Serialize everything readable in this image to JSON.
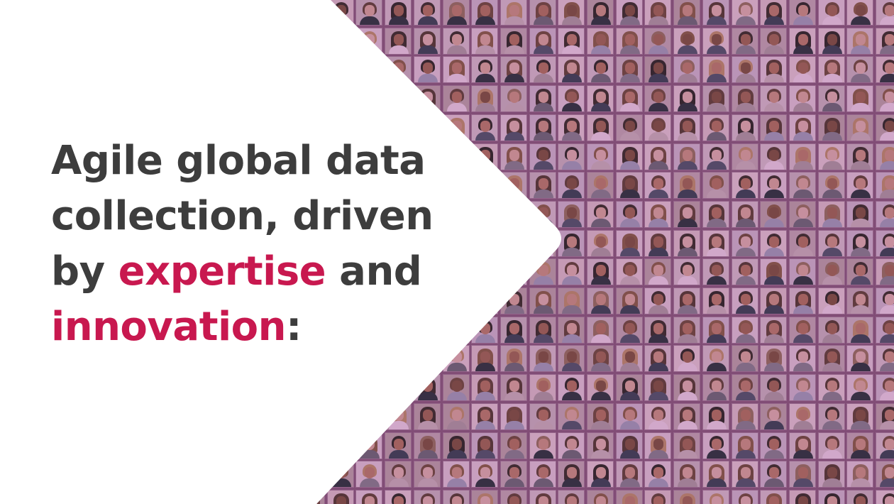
{
  "headline": {
    "part1": "Agile global data collection, driven by ",
    "accent1": "expertise",
    "part2": " and ",
    "accent2": "innovation",
    "part3": ":"
  },
  "colors": {
    "text": "#3d3d3d",
    "accent": "#c8184f",
    "mosaic_tint": "#963c82",
    "background": "#ffffff"
  },
  "mosaic": {
    "subject": "grid of portrait photos of diverse people"
  }
}
